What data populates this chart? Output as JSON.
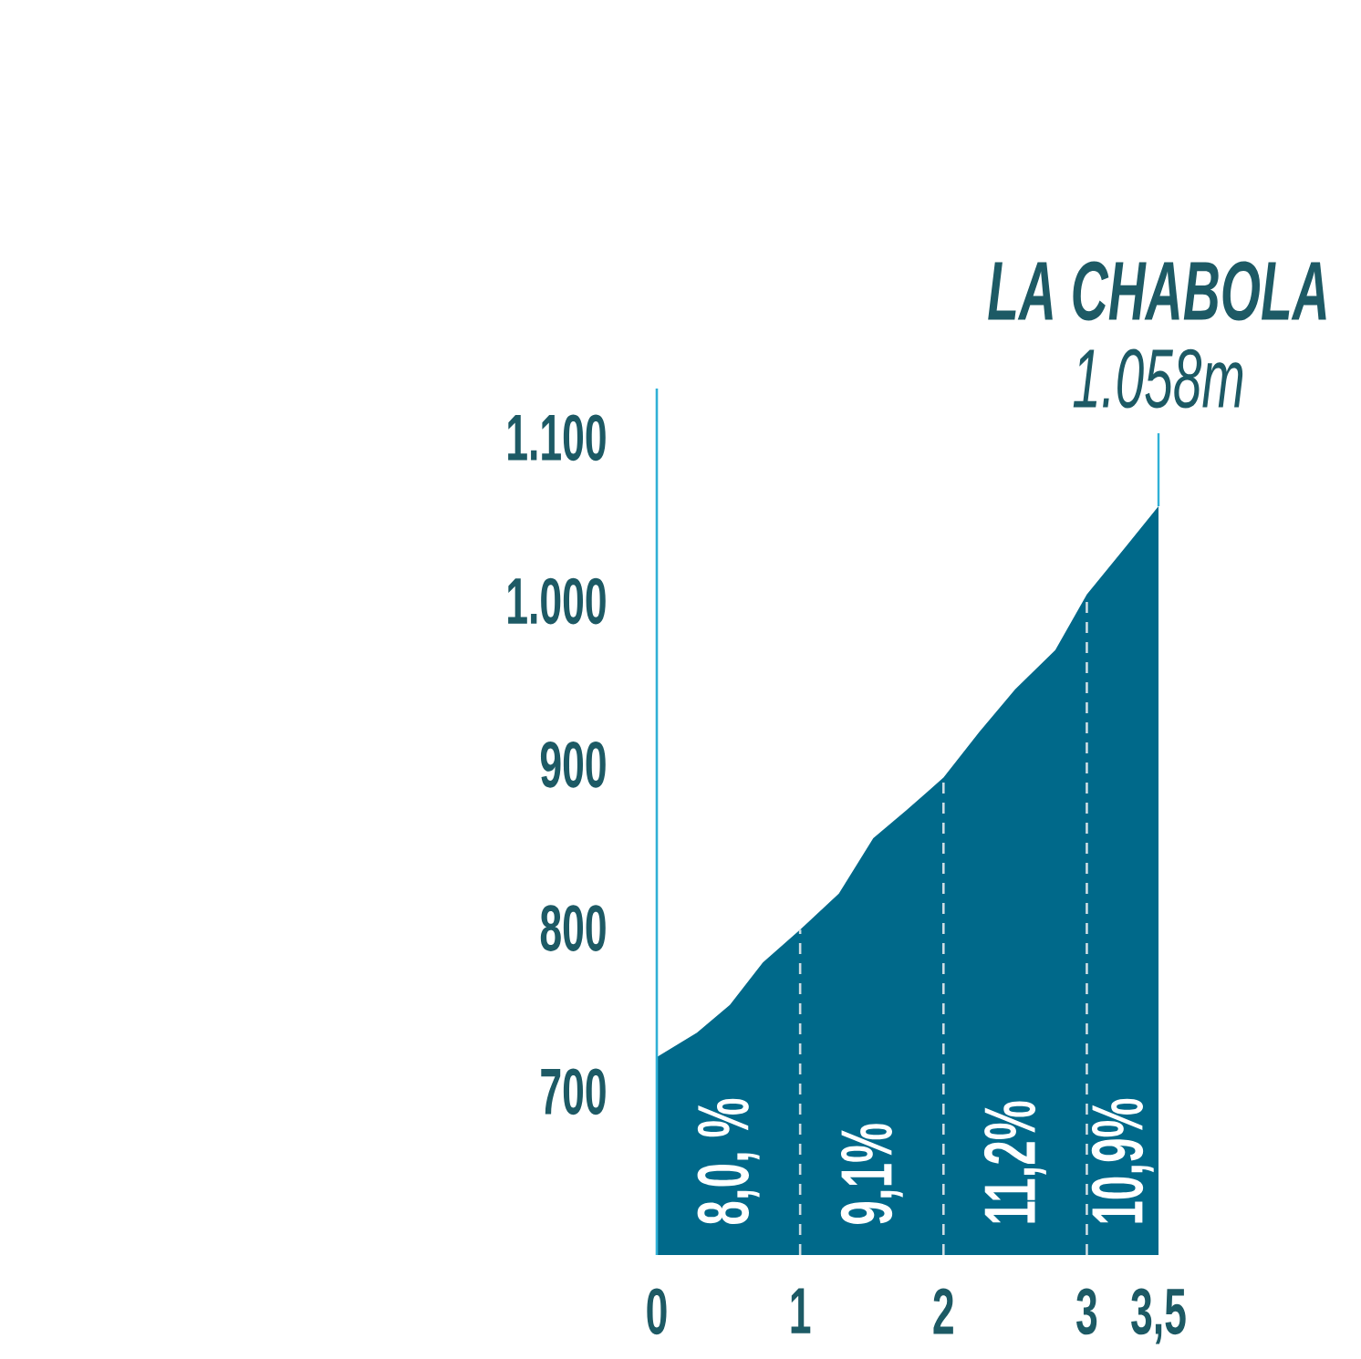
{
  "chart_data": {
    "type": "area",
    "x": [
      0,
      0.28,
      0.51,
      0.74,
      1,
      1.27,
      1.51,
      1.74,
      2,
      2.25,
      2.5,
      2.78,
      3,
      3.27,
      3.5
    ],
    "values": [
      721,
      736,
      753,
      779,
      799,
      821,
      855,
      872,
      892,
      920,
      946,
      970,
      1004,
      1033,
      1058
    ],
    "color": "#00698a",
    "xlim": [
      0,
      3.5
    ],
    "ylim": [
      600,
      1130
    ],
    "xticks": [
      0,
      1,
      2,
      3,
      {
        "value": 3.5,
        "label": "3,5"
      }
    ],
    "yticks": [
      700,
      800,
      900,
      {
        "value": 1000,
        "label": "1.000"
      },
      {
        "value": 1100,
        "label": "1.100"
      }
    ],
    "ref_lines": [
      {
        "axis": "x",
        "value": 1,
        "line_style": "dashed",
        "color": "#cfdde4"
      },
      {
        "axis": "x",
        "value": 2,
        "line_style": "dashed",
        "color": "#cfdde4"
      },
      {
        "axis": "x",
        "value": 3,
        "line_style": "dashed",
        "color": "#cfdde4"
      }
    ],
    "annotations": [
      "8,0, %",
      "9,1%",
      "11,2%",
      "10,9%",
      {
        "text": "LA CHABOLA",
        "x": 3.5,
        "y": 1058
      },
      {
        "text": "1.058m",
        "x": 3.5,
        "y": 1058
      }
    ]
  }
}
